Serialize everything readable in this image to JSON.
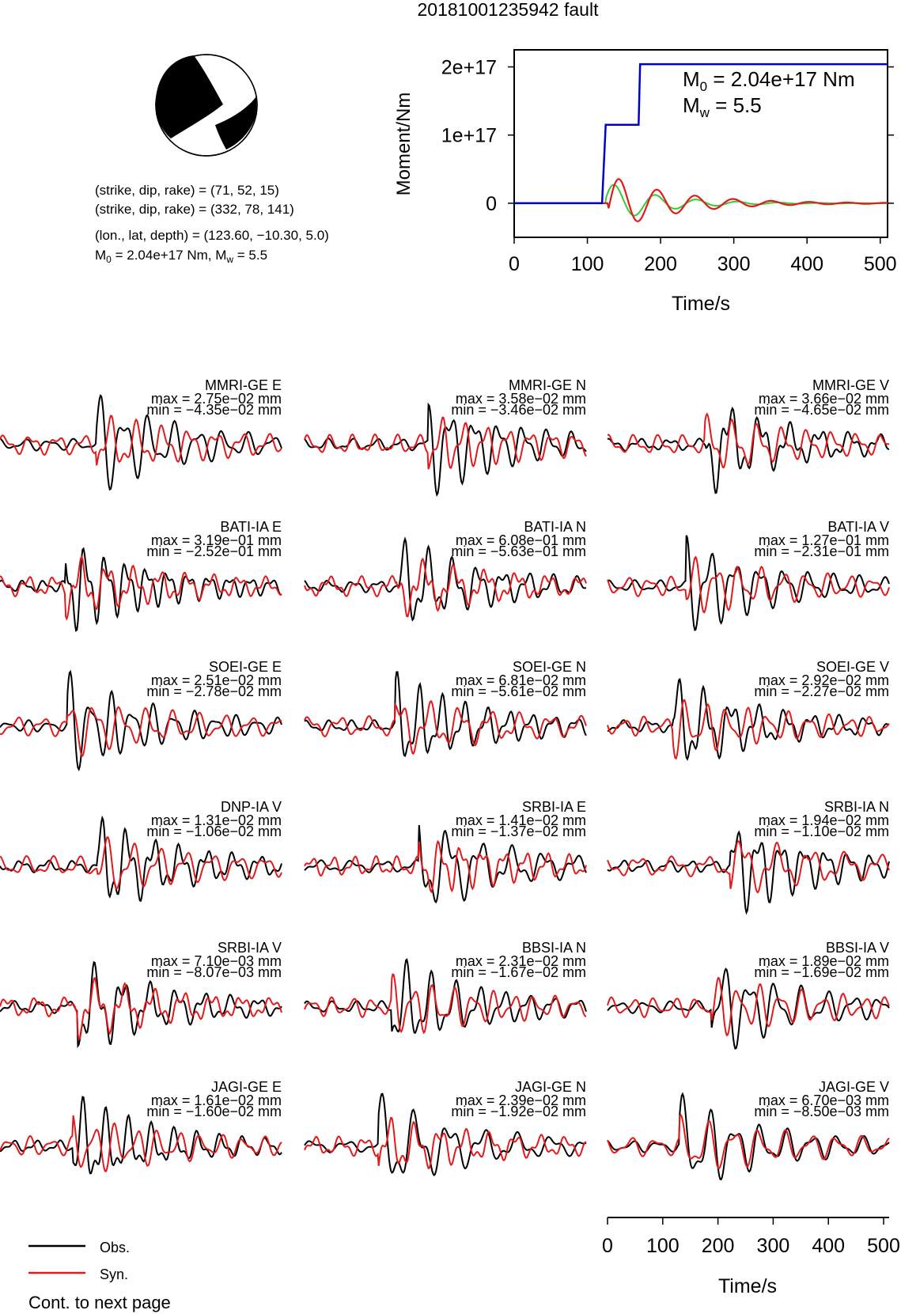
{
  "title": "20181001235942 fault",
  "beachball": {
    "plane1": {
      "label": "(strike, dip, rake) = (71, 52, 15)"
    },
    "plane2": {
      "label": "(strike, dip, rake) = (332, 78, 141)"
    },
    "location": "(lon., lat, depth) = (123.60, −10.30, 5.0)",
    "moment_text": "M₀ = 2.04e+17 Nm, Mᵥ = 5.5",
    "m0_prefix": "M",
    "m0_sub": "0",
    "m0_value": " = 2.04e+17 Nm, M",
    "mw_sub": "w",
    "mw_value": " = 5.5"
  },
  "colors": {
    "observed": "#000000",
    "synthetic": "#e31a1c",
    "moment": "#0000cc",
    "stf": "#33cc33",
    "axis": "#000000"
  },
  "legend": {
    "obs_label": "Obs.",
    "syn_label": "Syn."
  },
  "footer": "Cont. to next page",
  "chart_data": [
    {
      "type": "line",
      "name": "moment-function",
      "ylabel": "Moment/Nm",
      "xlabel": "Time/s",
      "xlim": [
        0,
        510
      ],
      "ylim": [
        -5e+16,
        2.25e+17
      ],
      "xticks": [
        0,
        100,
        200,
        300,
        400,
        500
      ],
      "yticks": [
        0,
        1e+17,
        2e+17
      ],
      "ytick_labels": [
        "0",
        "1e+17",
        "2e+17"
      ],
      "annotation_m0_prefix": "M",
      "annotation_m0_sub": "0",
      "annotation_m0_value": " = 2.04e+17 Nm",
      "annotation_mw_prefix": "M",
      "annotation_mw_sub": "w",
      "annotation_mw_value": " = 5.5",
      "series": [
        {
          "color": "#0000cc",
          "x": [
            0,
            120,
            125,
            125,
            170,
            172,
            510
          ],
          "y": [
            0,
            0,
            1.15e+17,
            1.15e+17,
            1.15e+17,
            2.04e+17,
            2.04e+17
          ]
        }
      ]
    },
    {
      "type": "line",
      "name": "waveforms",
      "xlabel": "Time/s",
      "xlim": [
        0,
        510
      ],
      "xticks": [
        0,
        100,
        200,
        300,
        400,
        500
      ],
      "panels": [
        {
          "station": "MMRI-GE E",
          "max": "max = 2.75e−02 mm",
          "min": "min = −4.35e−02 mm"
        },
        {
          "station": "MMRI-GE N",
          "max": "max = 3.58e−02 mm",
          "min": "min = −3.46e−02 mm"
        },
        {
          "station": "MMRI-GE V",
          "max": "max = 3.66e−02 mm",
          "min": "min = −4.65e−02 mm"
        },
        {
          "station": "BATI-IA E",
          "max": "max = 3.19e−01 mm",
          "min": "min = −2.52e−01 mm"
        },
        {
          "station": "BATI-IA N",
          "max": "max = 6.08e−01 mm",
          "min": "min = −5.63e−01 mm"
        },
        {
          "station": "BATI-IA V",
          "max": "max = 1.27e−01 mm",
          "min": "min = −2.31e−01 mm"
        },
        {
          "station": "SOEI-GE E",
          "max": "max = 2.51e−02 mm",
          "min": "min = −2.78e−02 mm"
        },
        {
          "station": "SOEI-GE N",
          "max": "max = 6.81e−02 mm",
          "min": "min = −5.61e−02 mm"
        },
        {
          "station": "SOEI-GE V",
          "max": "max = 2.92e−02 mm",
          "min": "min = −2.27e−02 mm"
        },
        {
          "station": "DNP-IA V",
          "max": "max = 1.31e−02 mm",
          "min": "min = −1.06e−02 mm"
        },
        {
          "station": "SRBI-IA E",
          "max": "max = 1.41e−02 mm",
          "min": "min = −1.37e−02 mm"
        },
        {
          "station": "SRBI-IA N",
          "max": "max = 1.94e−02 mm",
          "min": "min = −1.10e−02 mm"
        },
        {
          "station": "SRBI-IA V",
          "max": "max = 7.10e−03 mm",
          "min": "min = −8.07e−03 mm"
        },
        {
          "station": "BBSI-IA N",
          "max": "max = 2.31e−02 mm",
          "min": "min = −1.67e−02 mm"
        },
        {
          "station": "BBSI-IA V",
          "max": "max = 1.89e−02 mm",
          "min": "min = −1.69e−02 mm"
        },
        {
          "station": "JAGI-GE E",
          "max": "max = 1.61e−02 mm",
          "min": "min = −1.60e−02 mm"
        },
        {
          "station": "JAGI-GE N",
          "max": "max = 2.39e−02 mm",
          "min": "min = −1.92e−02 mm"
        },
        {
          "station": "JAGI-GE V",
          "max": "max = 6.70e−03 mm",
          "min": "min = −8.50e−03 mm"
        }
      ]
    }
  ]
}
